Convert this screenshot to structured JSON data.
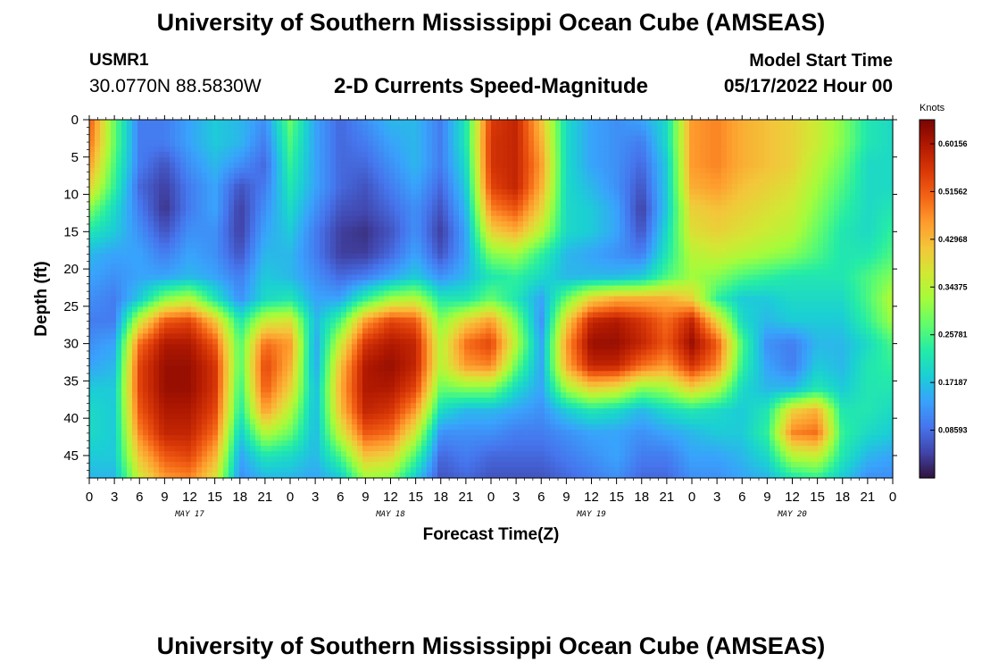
{
  "header": {
    "title": "University of Southern Mississippi Ocean Cube (AMSEAS)",
    "station_id": "USMR1",
    "station_coords": "30.0770N  88.5830W",
    "chart_title": "2-D Currents Speed-Magnitude",
    "model_label": "Model Start Time",
    "model_start": "05/17/2022 Hour 00"
  },
  "footer": {
    "title": "University of Southern Mississippi Ocean Cube (AMSEAS)"
  },
  "colors": {
    "scale": [
      "#30123b",
      "#4145ab",
      "#4675ed",
      "#39a2fc",
      "#1bcfd4",
      "#24eca6",
      "#61fc6c",
      "#a4fc3b",
      "#d1e834",
      "#f3c63a",
      "#fe9b2d",
      "#f36315",
      "#d93807",
      "#b11901",
      "#7a0403"
    ]
  },
  "chart_data": {
    "type": "heatmap",
    "title": "2-D Currents Speed-Magnitude",
    "xlabel": "Forecast Time(Z)",
    "ylabel": "Depth (ft)",
    "x_range_hours": [
      0,
      96
    ],
    "y_range_ft": [
      0,
      48
    ],
    "x_tick_labels": [
      "0",
      "3",
      "6",
      "9",
      "12",
      "15",
      "18",
      "21",
      "0",
      "3",
      "6",
      "9",
      "12",
      "15",
      "18",
      "21",
      "0",
      "3",
      "6",
      "9",
      "12",
      "15",
      "18",
      "21",
      "0",
      "3",
      "6",
      "9",
      "12",
      "15",
      "18",
      "21",
      "0"
    ],
    "x_tick_hours": [
      0,
      3,
      6,
      9,
      12,
      15,
      18,
      21,
      24,
      27,
      30,
      33,
      36,
      39,
      42,
      45,
      48,
      51,
      54,
      57,
      60,
      63,
      66,
      69,
      72,
      75,
      78,
      81,
      84,
      87,
      90,
      93,
      96
    ],
    "y_ticks": [
      0,
      5,
      10,
      15,
      20,
      25,
      30,
      35,
      40,
      45
    ],
    "day_labels": [
      {
        "label": "MAY 17",
        "hour": 12
      },
      {
        "label": "MAY 18",
        "hour": 36
      },
      {
        "label": "MAY 19",
        "hour": 60
      },
      {
        "label": "MAY 20",
        "hour": 84
      }
    ],
    "colorbar": {
      "unit": "Knots",
      "range": [
        0.0,
        0.645
      ],
      "ticks": [
        "0.60156",
        "0.51562",
        "0.42968",
        "0.34375",
        "0.25781",
        "0.17187",
        "0.08593"
      ],
      "tick_values": [
        0.60156,
        0.51562,
        0.42968,
        0.34375,
        0.25781,
        0.17187,
        0.08593
      ]
    },
    "time_hours": [
      0,
      3,
      6,
      9,
      12,
      15,
      18,
      21,
      24,
      27,
      30,
      33,
      36,
      39,
      42,
      45,
      48,
      51,
      54,
      57,
      60,
      63,
      66,
      69,
      72,
      75,
      78,
      81,
      84,
      87,
      90,
      93,
      96
    ],
    "depth_ft": [
      0,
      3,
      6,
      9,
      12,
      15,
      18,
      21,
      24,
      27,
      30,
      33,
      36,
      39,
      42,
      45,
      48
    ],
    "speed_knots": [
      [
        0.52,
        0.28,
        0.1,
        0.1,
        0.14,
        0.18,
        0.16,
        0.12,
        0.28,
        0.14,
        0.08,
        0.12,
        0.16,
        0.16,
        0.1,
        0.22,
        0.55,
        0.58,
        0.42,
        0.2,
        0.14,
        0.12,
        0.14,
        0.2,
        0.46,
        0.48,
        0.44,
        0.42,
        0.4,
        0.36,
        0.3,
        0.22,
        0.2
      ],
      [
        0.5,
        0.28,
        0.1,
        0.1,
        0.14,
        0.18,
        0.16,
        0.1,
        0.26,
        0.14,
        0.08,
        0.1,
        0.14,
        0.16,
        0.1,
        0.22,
        0.56,
        0.58,
        0.44,
        0.2,
        0.14,
        0.12,
        0.1,
        0.2,
        0.46,
        0.48,
        0.44,
        0.42,
        0.4,
        0.36,
        0.3,
        0.22,
        0.2
      ],
      [
        0.46,
        0.26,
        0.1,
        0.06,
        0.12,
        0.16,
        0.12,
        0.08,
        0.24,
        0.14,
        0.08,
        0.08,
        0.12,
        0.16,
        0.1,
        0.2,
        0.56,
        0.58,
        0.46,
        0.2,
        0.14,
        0.12,
        0.08,
        0.18,
        0.46,
        0.48,
        0.44,
        0.42,
        0.4,
        0.34,
        0.28,
        0.2,
        0.2
      ],
      [
        0.4,
        0.24,
        0.08,
        0.04,
        0.1,
        0.14,
        0.06,
        0.1,
        0.22,
        0.14,
        0.08,
        0.06,
        0.1,
        0.14,
        0.08,
        0.18,
        0.54,
        0.58,
        0.44,
        0.2,
        0.16,
        0.12,
        0.06,
        0.18,
        0.44,
        0.46,
        0.42,
        0.4,
        0.38,
        0.32,
        0.26,
        0.2,
        0.2
      ],
      [
        0.3,
        0.2,
        0.1,
        0.03,
        0.1,
        0.14,
        0.04,
        0.12,
        0.2,
        0.12,
        0.06,
        0.05,
        0.08,
        0.12,
        0.06,
        0.16,
        0.48,
        0.52,
        0.4,
        0.2,
        0.18,
        0.14,
        0.04,
        0.18,
        0.4,
        0.42,
        0.4,
        0.38,
        0.36,
        0.3,
        0.24,
        0.2,
        0.22
      ],
      [
        0.22,
        0.18,
        0.12,
        0.06,
        0.12,
        0.12,
        0.04,
        0.14,
        0.18,
        0.1,
        0.04,
        0.03,
        0.06,
        0.12,
        0.04,
        0.14,
        0.4,
        0.44,
        0.34,
        0.2,
        0.18,
        0.14,
        0.06,
        0.2,
        0.38,
        0.4,
        0.38,
        0.36,
        0.34,
        0.28,
        0.22,
        0.2,
        0.24
      ],
      [
        0.16,
        0.14,
        0.14,
        0.1,
        0.14,
        0.12,
        0.06,
        0.16,
        0.16,
        0.1,
        0.04,
        0.04,
        0.08,
        0.14,
        0.06,
        0.14,
        0.3,
        0.32,
        0.24,
        0.16,
        0.14,
        0.12,
        0.1,
        0.22,
        0.34,
        0.36,
        0.34,
        0.32,
        0.3,
        0.26,
        0.22,
        0.22,
        0.26
      ],
      [
        0.14,
        0.12,
        0.14,
        0.14,
        0.16,
        0.14,
        0.1,
        0.18,
        0.16,
        0.12,
        0.08,
        0.1,
        0.14,
        0.18,
        0.12,
        0.16,
        0.22,
        0.24,
        0.2,
        0.16,
        0.16,
        0.16,
        0.18,
        0.26,
        0.32,
        0.3,
        0.26,
        0.24,
        0.22,
        0.22,
        0.22,
        0.26,
        0.3
      ],
      [
        0.12,
        0.1,
        0.18,
        0.3,
        0.34,
        0.22,
        0.12,
        0.2,
        0.22,
        0.14,
        0.14,
        0.24,
        0.32,
        0.34,
        0.22,
        0.22,
        0.28,
        0.22,
        0.14,
        0.28,
        0.4,
        0.44,
        0.44,
        0.44,
        0.4,
        0.24,
        0.18,
        0.18,
        0.2,
        0.2,
        0.2,
        0.26,
        0.34
      ],
      [
        0.1,
        0.1,
        0.36,
        0.52,
        0.54,
        0.42,
        0.22,
        0.36,
        0.38,
        0.16,
        0.26,
        0.46,
        0.54,
        0.52,
        0.3,
        0.4,
        0.46,
        0.3,
        0.12,
        0.4,
        0.58,
        0.6,
        0.56,
        0.5,
        0.58,
        0.4,
        0.2,
        0.16,
        0.18,
        0.18,
        0.18,
        0.24,
        0.32
      ],
      [
        0.12,
        0.14,
        0.5,
        0.6,
        0.6,
        0.52,
        0.26,
        0.5,
        0.46,
        0.14,
        0.36,
        0.56,
        0.6,
        0.58,
        0.34,
        0.5,
        0.54,
        0.34,
        0.14,
        0.46,
        0.62,
        0.62,
        0.58,
        0.52,
        0.62,
        0.52,
        0.26,
        0.12,
        0.1,
        0.16,
        0.16,
        0.2,
        0.26
      ],
      [
        0.14,
        0.16,
        0.54,
        0.62,
        0.62,
        0.56,
        0.26,
        0.54,
        0.44,
        0.14,
        0.42,
        0.6,
        0.62,
        0.58,
        0.34,
        0.46,
        0.48,
        0.28,
        0.14,
        0.44,
        0.58,
        0.58,
        0.5,
        0.46,
        0.56,
        0.48,
        0.24,
        0.14,
        0.1,
        0.18,
        0.16,
        0.22,
        0.24
      ],
      [
        0.18,
        0.18,
        0.54,
        0.62,
        0.62,
        0.56,
        0.24,
        0.52,
        0.4,
        0.16,
        0.44,
        0.6,
        0.6,
        0.54,
        0.28,
        0.3,
        0.3,
        0.2,
        0.14,
        0.32,
        0.4,
        0.38,
        0.3,
        0.32,
        0.4,
        0.34,
        0.2,
        0.16,
        0.16,
        0.22,
        0.18,
        0.22,
        0.22
      ],
      [
        0.2,
        0.18,
        0.52,
        0.6,
        0.6,
        0.54,
        0.22,
        0.46,
        0.34,
        0.16,
        0.42,
        0.58,
        0.56,
        0.46,
        0.2,
        0.16,
        0.16,
        0.14,
        0.12,
        0.18,
        0.22,
        0.2,
        0.16,
        0.2,
        0.22,
        0.2,
        0.18,
        0.22,
        0.4,
        0.44,
        0.22,
        0.22,
        0.2
      ],
      [
        0.2,
        0.18,
        0.48,
        0.58,
        0.58,
        0.5,
        0.18,
        0.34,
        0.28,
        0.16,
        0.36,
        0.52,
        0.5,
        0.36,
        0.12,
        0.12,
        0.12,
        0.1,
        0.1,
        0.12,
        0.14,
        0.14,
        0.12,
        0.14,
        0.16,
        0.18,
        0.18,
        0.24,
        0.48,
        0.5,
        0.24,
        0.2,
        0.18
      ],
      [
        0.18,
        0.18,
        0.42,
        0.52,
        0.54,
        0.44,
        0.14,
        0.22,
        0.2,
        0.16,
        0.26,
        0.42,
        0.4,
        0.26,
        0.08,
        0.1,
        0.08,
        0.08,
        0.08,
        0.1,
        0.12,
        0.14,
        0.1,
        0.1,
        0.14,
        0.14,
        0.16,
        0.2,
        0.34,
        0.36,
        0.22,
        0.16,
        0.14
      ],
      [
        0.16,
        0.16,
        0.36,
        0.46,
        0.48,
        0.38,
        0.12,
        0.16,
        0.16,
        0.14,
        0.18,
        0.32,
        0.3,
        0.18,
        0.06,
        0.08,
        0.06,
        0.06,
        0.06,
        0.08,
        0.1,
        0.12,
        0.08,
        0.08,
        0.12,
        0.12,
        0.14,
        0.16,
        0.22,
        0.24,
        0.18,
        0.12,
        0.12
      ]
    ]
  }
}
